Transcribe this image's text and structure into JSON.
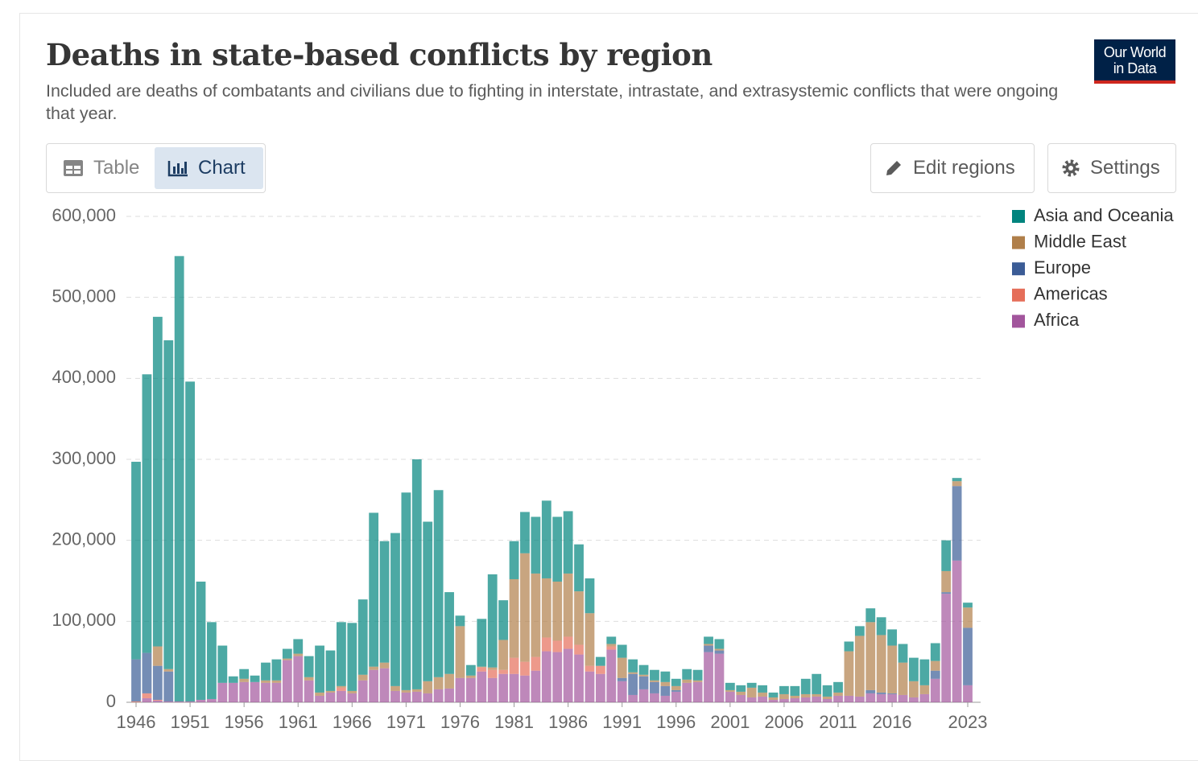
{
  "ui": {
    "logo_line1": "Our World",
    "logo_line2": "in Data",
    "tab_table": "Table",
    "tab_chart": "Chart",
    "button_edit": "Edit regions",
    "button_settings": "Settings"
  },
  "chart_data": {
    "type": "bar",
    "stacked": true,
    "title": "Deaths in state-based conflicts by region",
    "subtitle": "Included are deaths of combatants and civilians due to fighting in interstate, intrastate, and extrasystemic conflicts that were ongoing that year.",
    "x": [
      1946,
      1947,
      1948,
      1949,
      1950,
      1951,
      1952,
      1953,
      1954,
      1955,
      1956,
      1957,
      1958,
      1959,
      1960,
      1961,
      1962,
      1963,
      1964,
      1965,
      1966,
      1967,
      1968,
      1969,
      1970,
      1971,
      1972,
      1973,
      1974,
      1975,
      1976,
      1977,
      1978,
      1979,
      1980,
      1981,
      1982,
      1983,
      1984,
      1985,
      1986,
      1987,
      1988,
      1989,
      1990,
      1991,
      1992,
      1993,
      1994,
      1995,
      1996,
      1997,
      1998,
      1999,
      2000,
      2001,
      2002,
      2003,
      2004,
      2005,
      2006,
      2007,
      2008,
      2009,
      2010,
      2011,
      2012,
      2013,
      2014,
      2015,
      2016,
      2017,
      2018,
      2019,
      2020,
      2021,
      2022,
      2023
    ],
    "xlim": [
      1945.5,
      2023.5
    ],
    "xticks": [
      1946,
      1951,
      1956,
      1961,
      1966,
      1971,
      1976,
      1981,
      1986,
      1991,
      1996,
      2001,
      2006,
      2011,
      2016,
      2023
    ],
    "ylim": [
      0,
      600000
    ],
    "yticks": [
      0,
      {
        "value": 100000,
        "label": "100,000"
      },
      {
        "value": 200000,
        "label": "200,000"
      },
      {
        "value": 300000,
        "label": "300,000"
      },
      {
        "value": 400000,
        "label": "400,000"
      },
      {
        "value": 500000,
        "label": "500,000"
      },
      {
        "value": 600000,
        "label": "600,000"
      }
    ],
    "grid": true,
    "legend": "right",
    "series": [
      {
        "name": "Asia and Oceania",
        "color": "#00847e",
        "values": [
          244000,
          344000,
          407000,
          406000,
          550000,
          395000,
          146000,
          95000,
          46000,
          8000,
          12000,
          8000,
          22000,
          26000,
          12000,
          18000,
          26000,
          58000,
          50000,
          79000,
          84000,
          93000,
          190000,
          150000,
          189000,
          244000,
          284000,
          197000,
          231000,
          101000,
          13000,
          13000,
          59000,
          115000,
          49000,
          47000,
          51000,
          70000,
          96000,
          80000,
          77000,
          58000,
          43000,
          11000,
          9000,
          16000,
          16000,
          12000,
          13000,
          13000,
          9000,
          13000,
          13000,
          9000,
          12000,
          9000,
          8000,
          6000,
          9000,
          6000,
          10000,
          12000,
          19000,
          25000,
          14000,
          13000,
          12000,
          12000,
          17000,
          22000,
          20000,
          23000,
          29000,
          32000,
          22000,
          38000,
          4000,
          6000
        ]
      },
      {
        "name": "Middle East",
        "color": "#b07f4a",
        "values": [
          0,
          0,
          24000,
          3000,
          0,
          0,
          0,
          0,
          0,
          0,
          4000,
          0,
          3000,
          3000,
          2000,
          3000,
          4000,
          4000,
          2000,
          2000,
          3000,
          7000,
          4000,
          7000,
          6000,
          3000,
          3000,
          15000,
          15000,
          18000,
          64000,
          3000,
          1000,
          3000,
          37000,
          97000,
          134000,
          103000,
          73000,
          73000,
          78000,
          66000,
          65000,
          0,
          3000,
          25000,
          2000,
          2000,
          2000,
          5000,
          5000,
          4000,
          2000,
          2000,
          2000,
          2000,
          4000,
          12000,
          5000,
          3000,
          6000,
          3000,
          4000,
          3000,
          3000,
          4000,
          55000,
          75000,
          84000,
          71000,
          59000,
          40000,
          20000,
          11000,
          12000,
          26000,
          6000,
          25000
        ]
      },
      {
        "name": "Europe",
        "color": "#3b5c96",
        "values": [
          52000,
          50000,
          42000,
          37000,
          0,
          0,
          0,
          0,
          0,
          0,
          0,
          0,
          0,
          0,
          0,
          0,
          0,
          0,
          0,
          0,
          0,
          0,
          0,
          0,
          0,
          0,
          0,
          0,
          0,
          0,
          0,
          0,
          0,
          0,
          0,
          0,
          0,
          0,
          0,
          0,
          0,
          0,
          0,
          0,
          0,
          4000,
          26000,
          16000,
          14000,
          12000,
          2000,
          0,
          0,
          8000,
          4000,
          0,
          0,
          0,
          0,
          0,
          0,
          0,
          0,
          0,
          0,
          0,
          0,
          0,
          4000,
          2000,
          1000,
          0,
          0,
          0,
          10000,
          2000,
          92000,
          71000
        ]
      },
      {
        "name": "Americas",
        "color": "#e56e5a",
        "values": [
          1000,
          6000,
          1000,
          0,
          0,
          0,
          0,
          0,
          0,
          0,
          0,
          0,
          0,
          0,
          0,
          0,
          0,
          0,
          0,
          4000,
          0,
          0,
          0,
          0,
          0,
          0,
          0,
          0,
          0,
          0,
          0,
          0,
          5000,
          10000,
          5000,
          20000,
          17000,
          17000,
          17000,
          14000,
          15000,
          12000,
          7000,
          10000,
          4000,
          0,
          0,
          0,
          0,
          0,
          0,
          0,
          0,
          0,
          0,
          0,
          0,
          0,
          0,
          0,
          0,
          0,
          0,
          0,
          0,
          0,
          0,
          0,
          0,
          0,
          0,
          0,
          0,
          0,
          0,
          0,
          0,
          0
        ]
      },
      {
        "name": "Africa",
        "color": "#a2559c",
        "values": [
          0,
          5000,
          2000,
          1000,
          1000,
          1000,
          3000,
          4000,
          24000,
          24000,
          25000,
          25000,
          24000,
          24000,
          52000,
          57000,
          27000,
          8000,
          12000,
          14000,
          11000,
          27000,
          40000,
          42000,
          14000,
          12000,
          13000,
          11000,
          16000,
          17000,
          30000,
          30000,
          38000,
          30000,
          35000,
          35000,
          33000,
          39000,
          63000,
          62000,
          66000,
          59000,
          38000,
          35000,
          65000,
          26000,
          9000,
          16000,
          11000,
          8000,
          13000,
          24000,
          25000,
          62000,
          60000,
          13000,
          9000,
          6000,
          7000,
          3000,
          4000,
          5000,
          6000,
          7000,
          4000,
          8000,
          8000,
          7000,
          11000,
          10000,
          10000,
          9000,
          6000,
          10000,
          29000,
          134000,
          175000,
          21000
        ]
      }
    ]
  }
}
